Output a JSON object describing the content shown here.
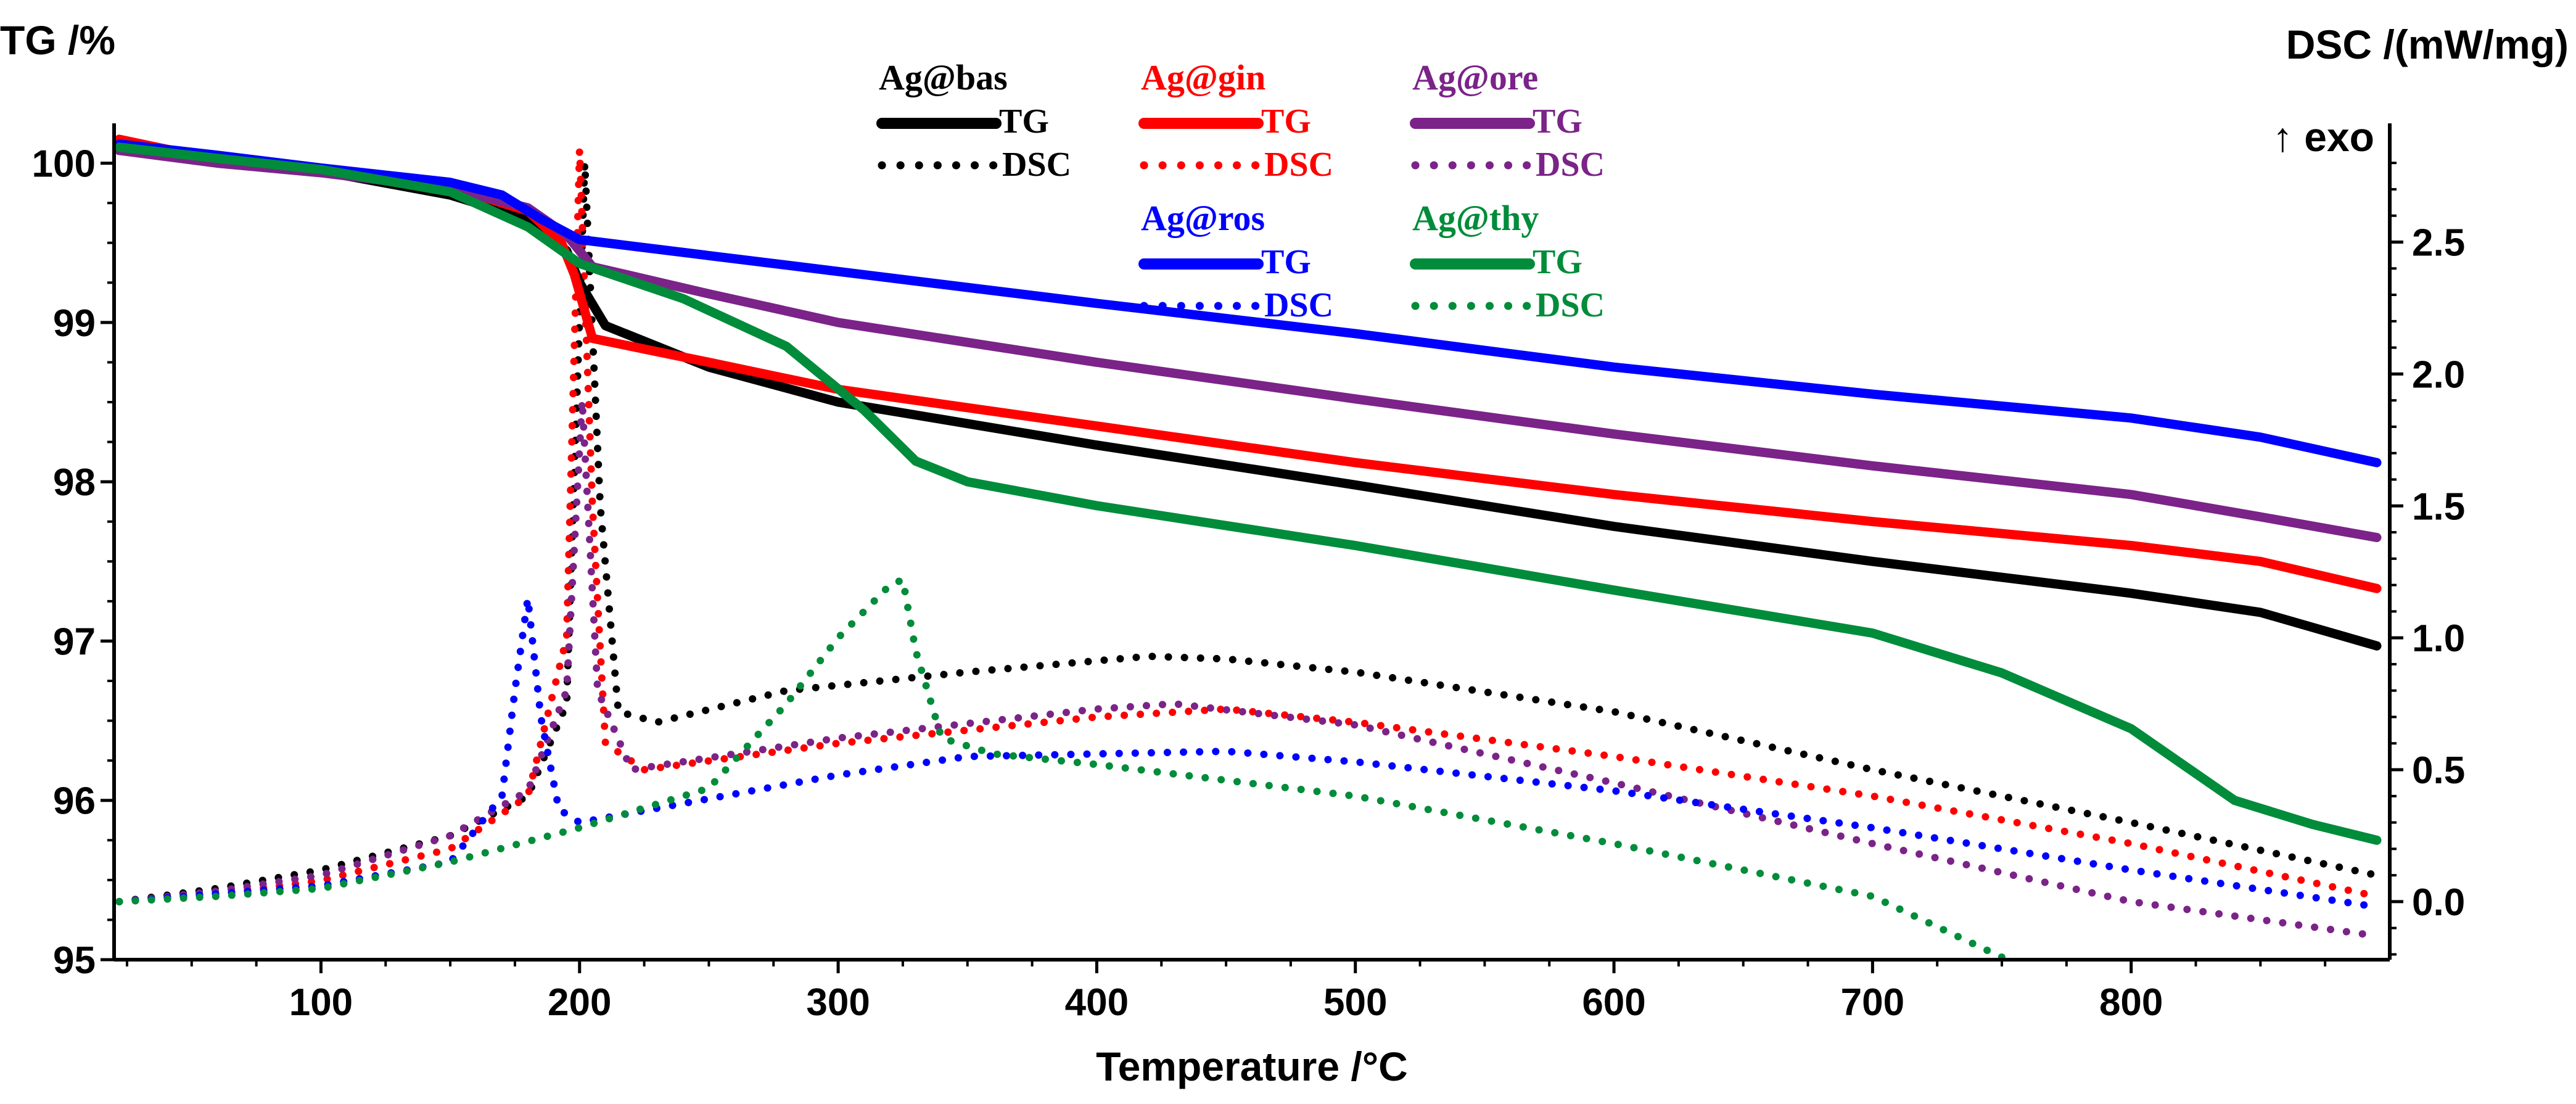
{
  "chart_data": {
    "type": "line",
    "x_axis": {
      "label": "Temperature /°C",
      "range": [
        20,
        900
      ],
      "ticks": [
        100,
        200,
        300,
        400,
        500,
        600,
        700,
        800
      ]
    },
    "y_left": {
      "label": "TG /%",
      "range": [
        95,
        100.25
      ],
      "ticks": [
        95,
        96,
        97,
        98,
        99,
        100
      ]
    },
    "y_right": {
      "label": "DSC /(mW/mg)",
      "range": [
        -0.22,
        2.95
      ],
      "ticks": [
        0.0,
        0.5,
        1.0,
        1.5,
        2.0,
        2.5
      ],
      "tick_labels": [
        "0.0",
        "0.5",
        "1.0",
        "1.5",
        "2.0",
        "2.5"
      ],
      "annotation": "↑ exo"
    },
    "legend_tg": "TG",
    "legend_dsc": "DSC",
    "series": [
      {
        "name": "Ag@bas",
        "color": "#000000",
        "tg": [
          [
            22,
            100.08
          ],
          [
            60,
            100.03
          ],
          [
            100,
            99.95
          ],
          [
            150,
            99.8
          ],
          [
            180,
            99.65
          ],
          [
            195,
            99.45
          ],
          [
            200,
            99.25
          ],
          [
            210,
            98.98
          ],
          [
            250,
            98.72
          ],
          [
            300,
            98.5
          ],
          [
            400,
            98.23
          ],
          [
            500,
            97.98
          ],
          [
            600,
            97.72
          ],
          [
            700,
            97.5
          ],
          [
            800,
            97.3
          ],
          [
            850,
            97.18
          ],
          [
            895,
            96.97
          ]
        ],
        "dsc": [
          [
            22,
            0.0
          ],
          [
            60,
            0.05
          ],
          [
            100,
            0.12
          ],
          [
            150,
            0.25
          ],
          [
            180,
            0.4
          ],
          [
            195,
            0.75
          ],
          [
            202,
            2.8
          ],
          [
            208,
            1.5
          ],
          [
            215,
            0.72
          ],
          [
            230,
            0.68
          ],
          [
            280,
            0.8
          ],
          [
            350,
            0.87
          ],
          [
            420,
            0.93
          ],
          [
            450,
            0.92
          ],
          [
            500,
            0.87
          ],
          [
            600,
            0.72
          ],
          [
            700,
            0.5
          ],
          [
            800,
            0.3
          ],
          [
            895,
            0.1
          ]
        ]
      },
      {
        "name": "Ag@gin",
        "color": "#ff0000",
        "tg": [
          [
            22,
            100.15
          ],
          [
            60,
            100.02
          ],
          [
            100,
            99.95
          ],
          [
            150,
            99.85
          ],
          [
            180,
            99.7
          ],
          [
            193,
            99.5
          ],
          [
            198,
            99.3
          ],
          [
            205,
            98.9
          ],
          [
            250,
            98.75
          ],
          [
            300,
            98.58
          ],
          [
            400,
            98.35
          ],
          [
            500,
            98.12
          ],
          [
            600,
            97.92
          ],
          [
            700,
            97.75
          ],
          [
            800,
            97.6
          ],
          [
            850,
            97.5
          ],
          [
            895,
            97.33
          ]
        ],
        "dsc": [
          [
            22,
            0.0
          ],
          [
            60,
            0.03
          ],
          [
            100,
            0.08
          ],
          [
            150,
            0.2
          ],
          [
            180,
            0.4
          ],
          [
            195,
            1.0
          ],
          [
            200,
            2.85
          ],
          [
            205,
            1.5
          ],
          [
            210,
            0.6
          ],
          [
            225,
            0.5
          ],
          [
            300,
            0.6
          ],
          [
            400,
            0.7
          ],
          [
            450,
            0.73
          ],
          [
            500,
            0.68
          ],
          [
            600,
            0.55
          ],
          [
            700,
            0.4
          ],
          [
            800,
            0.22
          ],
          [
            895,
            0.02
          ]
        ]
      },
      {
        "name": "Ag@ore",
        "color": "#7b2389",
        "tg": [
          [
            22,
            100.08
          ],
          [
            60,
            100.0
          ],
          [
            100,
            99.94
          ],
          [
            150,
            99.84
          ],
          [
            180,
            99.72
          ],
          [
            195,
            99.55
          ],
          [
            205,
            99.35
          ],
          [
            250,
            99.18
          ],
          [
            300,
            99.0
          ],
          [
            400,
            98.75
          ],
          [
            500,
            98.52
          ],
          [
            600,
            98.3
          ],
          [
            700,
            98.1
          ],
          [
            800,
            97.92
          ],
          [
            850,
            97.78
          ],
          [
            895,
            97.65
          ]
        ],
        "dsc": [
          [
            22,
            0.0
          ],
          [
            60,
            0.04
          ],
          [
            100,
            0.1
          ],
          [
            150,
            0.25
          ],
          [
            180,
            0.42
          ],
          [
            195,
            0.8
          ],
          [
            201,
            1.9
          ],
          [
            207,
            0.8
          ],
          [
            220,
            0.5
          ],
          [
            300,
            0.62
          ],
          [
            400,
            0.73
          ],
          [
            430,
            0.75
          ],
          [
            500,
            0.67
          ],
          [
            600,
            0.45
          ],
          [
            700,
            0.22
          ],
          [
            800,
            0.0
          ],
          [
            895,
            -0.13
          ]
        ]
      },
      {
        "name": "Ag@ros",
        "color": "#0000ff",
        "tg": [
          [
            22,
            100.12
          ],
          [
            60,
            100.05
          ],
          [
            100,
            99.97
          ],
          [
            150,
            99.88
          ],
          [
            170,
            99.8
          ],
          [
            185,
            99.65
          ],
          [
            200,
            99.52
          ],
          [
            250,
            99.42
          ],
          [
            300,
            99.32
          ],
          [
            400,
            99.12
          ],
          [
            500,
            98.93
          ],
          [
            600,
            98.72
          ],
          [
            700,
            98.55
          ],
          [
            800,
            98.4
          ],
          [
            850,
            98.28
          ],
          [
            895,
            98.12
          ]
        ],
        "dsc": [
          [
            22,
            0.0
          ],
          [
            60,
            0.03
          ],
          [
            100,
            0.06
          ],
          [
            150,
            0.15
          ],
          [
            170,
            0.4
          ],
          [
            175,
            0.8
          ],
          [
            180,
            1.15
          ],
          [
            185,
            0.7
          ],
          [
            192,
            0.35
          ],
          [
            200,
            0.3
          ],
          [
            300,
            0.48
          ],
          [
            350,
            0.55
          ],
          [
            450,
            0.57
          ],
          [
            500,
            0.53
          ],
          [
            600,
            0.42
          ],
          [
            700,
            0.28
          ],
          [
            800,
            0.12
          ],
          [
            895,
            -0.02
          ]
        ]
      },
      {
        "name": "Ag@thy",
        "color": "#008c3a",
        "tg": [
          [
            22,
            100.1
          ],
          [
            60,
            100.03
          ],
          [
            100,
            99.96
          ],
          [
            150,
            99.82
          ],
          [
            180,
            99.6
          ],
          [
            200,
            99.37
          ],
          [
            240,
            99.15
          ],
          [
            280,
            98.85
          ],
          [
            310,
            98.45
          ],
          [
            330,
            98.13
          ],
          [
            350,
            98.0
          ],
          [
            400,
            97.85
          ],
          [
            500,
            97.6
          ],
          [
            600,
            97.32
          ],
          [
            700,
            97.05
          ],
          [
            750,
            96.8
          ],
          [
            800,
            96.45
          ],
          [
            840,
            96.0
          ],
          [
            870,
            95.85
          ],
          [
            895,
            95.75
          ]
        ],
        "dsc": [
          [
            22,
            0.0
          ],
          [
            60,
            0.02
          ],
          [
            100,
            0.05
          ],
          [
            150,
            0.15
          ],
          [
            200,
            0.28
          ],
          [
            250,
            0.43
          ],
          [
            280,
            0.75
          ],
          [
            300,
            1.0
          ],
          [
            320,
            1.2
          ],
          [
            325,
            1.22
          ],
          [
            330,
            0.95
          ],
          [
            340,
            0.62
          ],
          [
            360,
            0.56
          ],
          [
            400,
            0.52
          ],
          [
            500,
            0.4
          ],
          [
            600,
            0.22
          ],
          [
            700,
            0.02
          ],
          [
            752,
            -0.22
          ]
        ]
      }
    ]
  }
}
